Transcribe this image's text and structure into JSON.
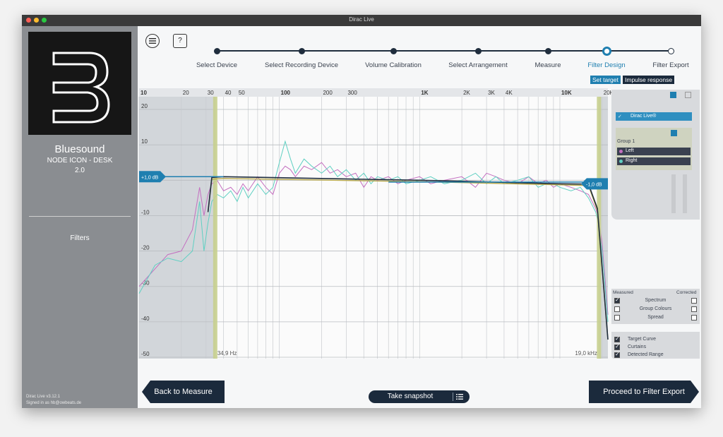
{
  "window": {
    "title": "Dirac Live"
  },
  "sidebar": {
    "device_name": "Bluesound",
    "device_model": "NODE ICON - DESK",
    "channels": "2.0",
    "section": "Filters",
    "version": "Dirac Live v3.12.1",
    "signed_in": "Signed in as hb@owbeats.de"
  },
  "toolbar": {
    "menu_icon": "menu-icon",
    "help_label": "?"
  },
  "steps": [
    {
      "label": "Select Device",
      "state": "done"
    },
    {
      "label": "Select Recording Device",
      "state": "done"
    },
    {
      "label": "Volume Calibration",
      "state": "done"
    },
    {
      "label": "Select Arrangement",
      "state": "done"
    },
    {
      "label": "Measure",
      "state": "done"
    },
    {
      "label": "Filter Design",
      "state": "current"
    },
    {
      "label": "Filter Export",
      "state": "todo"
    }
  ],
  "subtabs": {
    "set_target": "Set target",
    "impulse_response": "Impulse response"
  },
  "graph": {
    "x_ticks": [
      {
        "f": 10,
        "label": "10",
        "major": true
      },
      {
        "f": 20,
        "label": "20",
        "major": false
      },
      {
        "f": 30,
        "label": "30",
        "major": false
      },
      {
        "f": 40,
        "label": "40",
        "major": false
      },
      {
        "f": 50,
        "label": "50",
        "major": false
      },
      {
        "f": 100,
        "label": "100",
        "major": true
      },
      {
        "f": 200,
        "label": "200",
        "major": false
      },
      {
        "f": 300,
        "label": "300",
        "major": false
      },
      {
        "f": 1000,
        "label": "1K",
        "major": true
      },
      {
        "f": 2000,
        "label": "2K",
        "major": false
      },
      {
        "f": 3000,
        "label": "3K",
        "major": false
      },
      {
        "f": 4000,
        "label": "4K",
        "major": false
      },
      {
        "f": 10000,
        "label": "10K",
        "major": true
      },
      {
        "f": 20000,
        "label": "20K",
        "major": false
      }
    ],
    "y_ticks": [
      20,
      10,
      0,
      -10,
      -20,
      -30,
      -40,
      -50
    ],
    "y_tick_labels": [
      "20",
      "10",
      "",
      "-10",
      "-20",
      "-30",
      "-40",
      "-50"
    ],
    "x_range_hz": [
      10,
      22000
    ],
    "y_range_db": [
      -50,
      22
    ],
    "curtain_low_label": "34,9 Hz",
    "curtain_high_label": "19,0 kHz",
    "curtain_low_hz": 34.9,
    "curtain_high_hz": 19000,
    "target_low_label": "+1,0 dB",
    "target_high_label": "-1,0 dB",
    "colors": {
      "left": "#c46fc0",
      "right": "#5fd0c2",
      "target": "#1f2d3d",
      "accent": "#1f7fb0",
      "curtain": "#c6cf8e"
    },
    "target_curve": [
      [
        31,
        -9
      ],
      [
        33,
        0.8
      ],
      [
        40,
        1.0
      ],
      [
        1000,
        0
      ],
      [
        10000,
        -1
      ],
      [
        16000,
        -1.1
      ],
      [
        18500,
        -8
      ],
      [
        22000,
        -45
      ]
    ],
    "corrected_curve": [
      [
        31,
        -9
      ],
      [
        33,
        0.3
      ],
      [
        40,
        0.5
      ],
      [
        1000,
        -0.4
      ],
      [
        10000,
        -1.3
      ],
      [
        16000,
        -1.5
      ],
      [
        18500,
        -8.5
      ],
      [
        22000,
        -45
      ]
    ],
    "left_curve": [
      [
        10,
        -30
      ],
      [
        13,
        -25
      ],
      [
        16,
        -21
      ],
      [
        20,
        -20
      ],
      [
        24,
        -14
      ],
      [
        27,
        -2
      ],
      [
        29,
        -10
      ],
      [
        31,
        -4
      ],
      [
        33,
        -1
      ],
      [
        36,
        0
      ],
      [
        40,
        -3
      ],
      [
        45,
        -2
      ],
      [
        50,
        -4
      ],
      [
        55,
        -1
      ],
      [
        60,
        -3
      ],
      [
        70,
        1
      ],
      [
        80,
        -2
      ],
      [
        90,
        -4
      ],
      [
        100,
        2
      ],
      [
        110,
        4
      ],
      [
        120,
        3
      ],
      [
        130,
        1
      ],
      [
        150,
        4
      ],
      [
        170,
        3
      ],
      [
        200,
        5
      ],
      [
        230,
        2
      ],
      [
        260,
        3
      ],
      [
        300,
        1
      ],
      [
        350,
        2
      ],
      [
        400,
        -2
      ],
      [
        450,
        1
      ],
      [
        500,
        0
      ],
      [
        600,
        1
      ],
      [
        700,
        -1
      ],
      [
        800,
        0
      ],
      [
        1000,
        1
      ],
      [
        1200,
        -1
      ],
      [
        1500,
        0
      ],
      [
        2000,
        1
      ],
      [
        2500,
        -2
      ],
      [
        3000,
        2
      ],
      [
        3500,
        1
      ],
      [
        4000,
        0
      ],
      [
        5000,
        -1
      ],
      [
        6000,
        1
      ],
      [
        7000,
        -1
      ],
      [
        8000,
        0
      ],
      [
        9000,
        -2
      ],
      [
        10000,
        -1
      ],
      [
        12000,
        -2
      ],
      [
        14000,
        -3
      ],
      [
        16000,
        -4
      ],
      [
        18000,
        -8
      ],
      [
        19000,
        -11
      ],
      [
        20000,
        -18
      ],
      [
        21000,
        -28
      ],
      [
        22000,
        -38
      ]
    ],
    "right_curve": [
      [
        10,
        -32
      ],
      [
        13,
        -24
      ],
      [
        16,
        -22
      ],
      [
        20,
        -23
      ],
      [
        24,
        -20
      ],
      [
        27,
        -6
      ],
      [
        29,
        -20
      ],
      [
        31,
        -12
      ],
      [
        33,
        -6
      ],
      [
        36,
        -4
      ],
      [
        40,
        -5
      ],
      [
        45,
        -3
      ],
      [
        50,
        -6
      ],
      [
        55,
        -2
      ],
      [
        60,
        -5
      ],
      [
        70,
        -1
      ],
      [
        80,
        -4
      ],
      [
        90,
        -2
      ],
      [
        100,
        5
      ],
      [
        110,
        11
      ],
      [
        120,
        6
      ],
      [
        130,
        2
      ],
      [
        150,
        6
      ],
      [
        170,
        4
      ],
      [
        200,
        2
      ],
      [
        230,
        4
      ],
      [
        260,
        1
      ],
      [
        300,
        3
      ],
      [
        350,
        0
      ],
      [
        400,
        2
      ],
      [
        450,
        -1
      ],
      [
        500,
        1
      ],
      [
        600,
        0
      ],
      [
        700,
        1
      ],
      [
        800,
        -1
      ],
      [
        1000,
        0
      ],
      [
        1200,
        1
      ],
      [
        1500,
        -1
      ],
      [
        2000,
        0
      ],
      [
        2500,
        2
      ],
      [
        3000,
        -1
      ],
      [
        3500,
        1
      ],
      [
        4000,
        -1
      ],
      [
        5000,
        0
      ],
      [
        6000,
        1
      ],
      [
        7000,
        -2
      ],
      [
        8000,
        -1
      ],
      [
        9000,
        -1
      ],
      [
        10000,
        -2
      ],
      [
        12000,
        -3
      ],
      [
        14000,
        -2
      ],
      [
        16000,
        -5
      ],
      [
        18000,
        -9
      ],
      [
        19000,
        -13
      ],
      [
        20000,
        -20
      ],
      [
        21000,
        -30
      ],
      [
        22000,
        -40
      ]
    ]
  },
  "groups": {
    "dirac": "Dirac Live®",
    "group_label": "Group 1",
    "left": "Left",
    "right": "Right"
  },
  "display_options": {
    "measured_label": "Measured",
    "corrected_label": "Corrected",
    "rows": [
      {
        "label": "Spectrum",
        "measured": true,
        "corrected": false
      },
      {
        "label": "Group Colours",
        "measured": false,
        "corrected": false
      },
      {
        "label": "Spread",
        "measured": false,
        "corrected": false
      }
    ]
  },
  "overlay_options": [
    {
      "label": "Target Curve",
      "checked": true
    },
    {
      "label": "Curtains",
      "checked": true
    },
    {
      "label": "Detected Range",
      "checked": true
    }
  ],
  "footer": {
    "back": "Back to Measure",
    "snapshot": "Take snapshot",
    "proceed": "Proceed to Filter Export"
  }
}
